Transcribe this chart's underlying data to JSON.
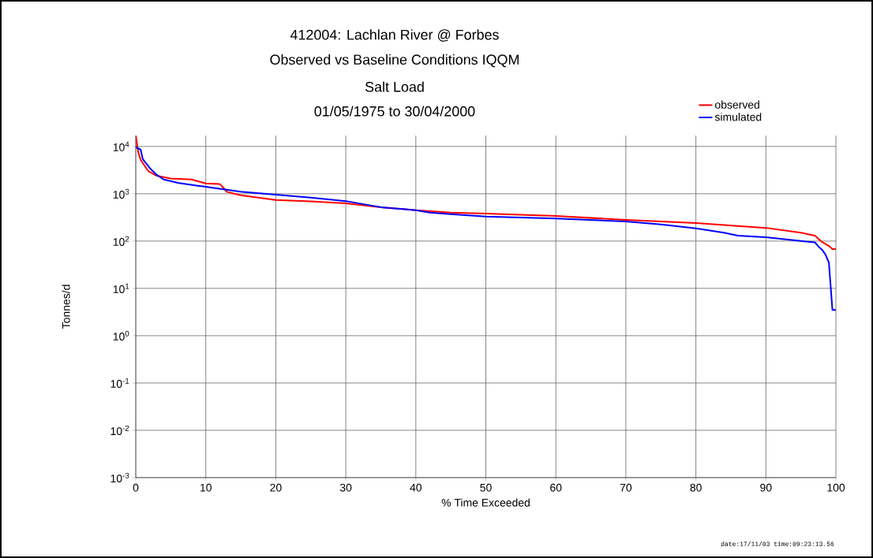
{
  "chart_data": {
    "type": "line",
    "title": "412004: Lachlan River @ Forbes",
    "subtitle": "Observed vs Baseline Conditions IQQM",
    "annotations": [
      "Salt Load",
      "01/05/1975 to 30/04/2000",
      "date:17/11/03 time:09:23:13.56"
    ],
    "xlabel": "% Time Exceeded",
    "ylabel": "Tonnes/d",
    "x": [
      0,
      0.35,
      0.7,
      1.8,
      3,
      5,
      8,
      10,
      12,
      12.5,
      13,
      15,
      20,
      25,
      30,
      35,
      40,
      45,
      50,
      60,
      70,
      80,
      90,
      95,
      97,
      98,
      99,
      99.5,
      100
    ],
    "series": [
      {
        "name": "observed",
        "color": "#ff0000",
        "values": [
          17000,
          7600,
          5200,
          3000,
          2400,
          2100,
          2000,
          1650,
          1600,
          1350,
          1100,
          930,
          740,
          690,
          630,
          520,
          450,
          400,
          380,
          340,
          280,
          240,
          190,
          150,
          130,
          96,
          79,
          68,
          68
        ]
      },
      {
        "name": "simulated",
        "color": "#0000ff",
        "x": [
          0,
          0.7,
          1,
          2,
          3,
          4,
          6,
          10,
          15,
          20,
          25,
          30,
          35,
          40,
          42,
          45,
          50,
          60,
          70,
          75,
          80,
          84,
          86,
          90,
          95,
          97,
          97.5,
          98,
          98.5,
          99,
          99.5,
          100
        ],
        "values": [
          9600,
          8600,
          5400,
          3500,
          2500,
          2000,
          1700,
          1400,
          1100,
          960,
          830,
          700,
          520,
          450,
          400,
          370,
          330,
          300,
          260,
          225,
          185,
          150,
          130,
          120,
          100,
          94,
          77,
          66,
          52,
          35,
          3.5,
          3.5
        ]
      }
    ],
    "xlim": [
      0,
      100
    ],
    "xticks": [
      0,
      10,
      20,
      30,
      40,
      50,
      60,
      70,
      80,
      90,
      100
    ],
    "ylim": [
      0.001,
      17000
    ],
    "yticks": [
      {
        "value": 0.001,
        "label": "10$^{-3}$"
      },
      {
        "value": 0.01,
        "label": "10$^{-2}$"
      },
      {
        "value": 0.1,
        "label": "10$^{-1}$"
      },
      {
        "value": 1,
        "label": "10$^{0}$"
      },
      {
        "value": 10,
        "label": "10$^{1}$"
      },
      {
        "value": 100,
        "label": "10$^{2}$"
      },
      {
        "value": 1000,
        "label": "10$^{3}$"
      },
      {
        "value": 10000,
        "label": "10$^{4}$"
      }
    ],
    "log": true,
    "grid": true,
    "legend": "top right",
    "marker": "none",
    "line_style": "solid"
  }
}
